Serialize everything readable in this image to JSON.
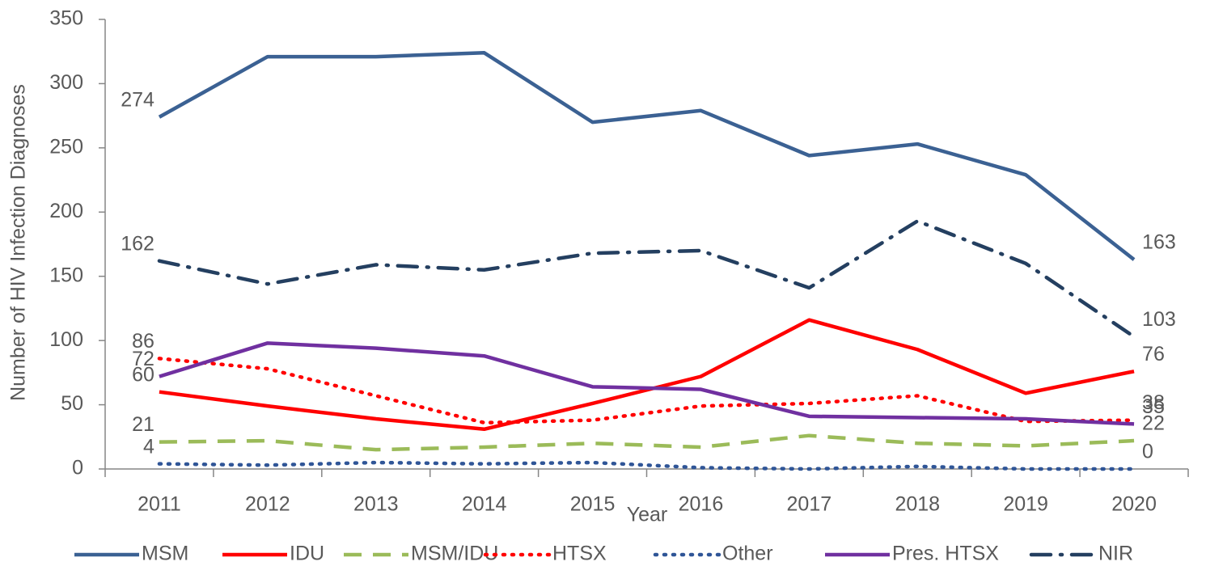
{
  "chart_data": {
    "type": "line",
    "y_label": "Number of HIV Infection Diagnoses",
    "x_label": "Year",
    "categories": [
      "2011",
      "2012",
      "2013",
      "2014",
      "2015",
      "2016",
      "2017",
      "2018",
      "2019",
      "2020"
    ],
    "ylim": [
      0,
      350
    ],
    "yticks": [
      0,
      50,
      100,
      150,
      200,
      250,
      300,
      350
    ],
    "grid": false,
    "legend": "bottom",
    "data_labels": "ends",
    "series": [
      {
        "name": "MSM",
        "color": "#3b6193",
        "dash": "solid",
        "values": [
          274,
          321,
          321,
          324,
          270,
          279,
          244,
          253,
          229,
          163
        ]
      },
      {
        "name": "IDU",
        "color": "#ff0000",
        "dash": "solid",
        "values": [
          60,
          49,
          39,
          31,
          51,
          72,
          116,
          93,
          59,
          76
        ]
      },
      {
        "name": "MSM/IDU",
        "color": "#9bbb59",
        "dash": "dash",
        "values": [
          21,
          22,
          15,
          17,
          20,
          17,
          26,
          20,
          18,
          22
        ]
      },
      {
        "name": "HTSX",
        "color": "#ff0000",
        "dash": "dot",
        "values": [
          86,
          78,
          57,
          36,
          38,
          49,
          51,
          57,
          37,
          38
        ]
      },
      {
        "name": "Other",
        "color": "#2f5597",
        "dash": "dot",
        "values": [
          4,
          3,
          5,
          4,
          5,
          1,
          0,
          2,
          0,
          0
        ]
      },
      {
        "name": "Pres. HTSX",
        "color": "#7030a0",
        "dash": "solid",
        "values": [
          72,
          98,
          94,
          88,
          64,
          62,
          41,
          40,
          39,
          35
        ]
      },
      {
        "name": "NIR",
        "color": "#243f60",
        "dash": "dashdot",
        "values": [
          162,
          144,
          159,
          155,
          168,
          170,
          141,
          193,
          160,
          103
        ]
      }
    ]
  }
}
